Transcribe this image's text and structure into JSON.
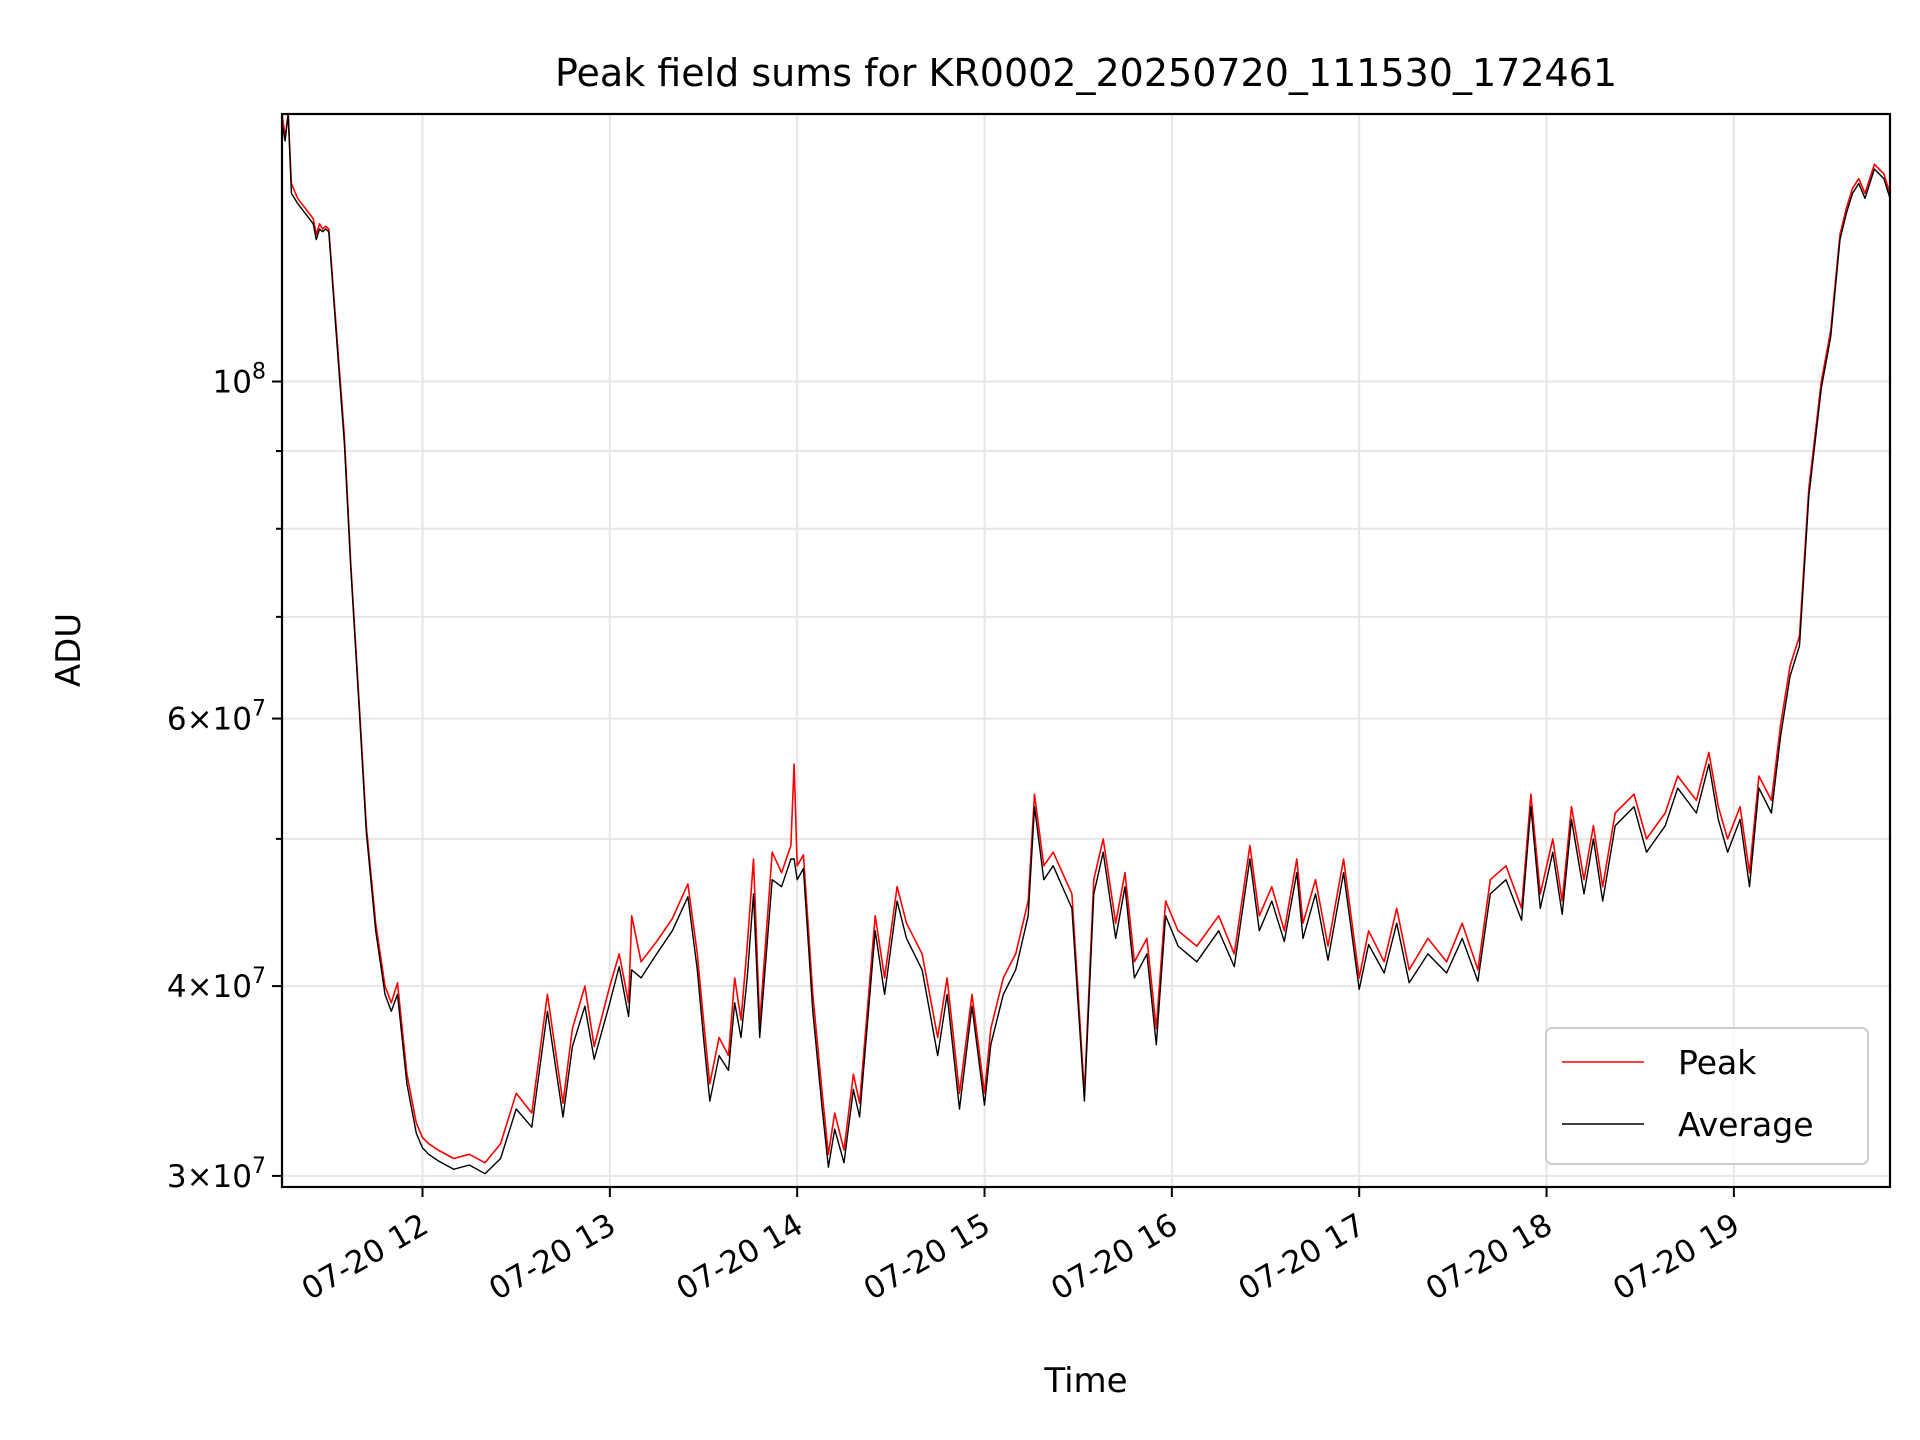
{
  "chart_data": {
    "type": "line",
    "title": "Peak field sums for KR0002_20250720_111530_172461",
    "xlabel": "Time",
    "ylabel": "ADU",
    "yscale": "log",
    "ylim": [
      29500000,
      150000000
    ],
    "xlim": [
      "2025-07-20 11:15",
      "2025-07-20 19:50"
    ],
    "grid": true,
    "legend_position": "lower right",
    "x_ticks": [
      {
        "x": "2025-07-20 12:00",
        "label": "07-20 12"
      },
      {
        "x": "2025-07-20 13:00",
        "label": "07-20 13"
      },
      {
        "x": "2025-07-20 14:00",
        "label": "07-20 14"
      },
      {
        "x": "2025-07-20 15:00",
        "label": "07-20 15"
      },
      {
        "x": "2025-07-20 16:00",
        "label": "07-20 16"
      },
      {
        "x": "2025-07-20 17:00",
        "label": "07-20 17"
      },
      {
        "x": "2025-07-20 18:00",
        "label": "07-20 18"
      },
      {
        "x": "2025-07-20 19:00",
        "label": "07-20 19"
      }
    ],
    "y_major_ticks": [
      {
        "value": 30000000,
        "mantissa": "3",
        "exp": "7"
      },
      {
        "value": 40000000,
        "mantissa": "4",
        "exp": "7"
      },
      {
        "value": 60000000,
        "mantissa": "6",
        "exp": "7"
      },
      {
        "value": 100000000,
        "mantissa": "",
        "exp": "8"
      }
    ],
    "y_minor_ticks": [
      50000000,
      70000000,
      80000000,
      90000000
    ],
    "series": [
      {
        "name": "Peak",
        "color": "#ff0000",
        "x": [
          "2025-07-20 11:15",
          "2025-07-20 11:16",
          "2025-07-20 11:17",
          "2025-07-20 11:18",
          "2025-07-20 11:20",
          "2025-07-20 11:25",
          "2025-07-20 11:26",
          "2025-07-20 11:27",
          "2025-07-20 11:28",
          "2025-07-20 11:29",
          "2025-07-20 11:30",
          "2025-07-20 11:32",
          "2025-07-20 11:35",
          "2025-07-20 11:37",
          "2025-07-20 11:40",
          "2025-07-20 11:42",
          "2025-07-20 11:45",
          "2025-07-20 11:48",
          "2025-07-20 11:50",
          "2025-07-20 11:52",
          "2025-07-20 11:55",
          "2025-07-20 11:58",
          "2025-07-20 12:00",
          "2025-07-20 12:02",
          "2025-07-20 12:05",
          "2025-07-20 12:10",
          "2025-07-20 12:15",
          "2025-07-20 12:20",
          "2025-07-20 12:25",
          "2025-07-20 12:30",
          "2025-07-20 12:35",
          "2025-07-20 12:40",
          "2025-07-20 12:45",
          "2025-07-20 12:48",
          "2025-07-20 12:52",
          "2025-07-20 12:55",
          "2025-07-20 13:00",
          "2025-07-20 13:03",
          "2025-07-20 13:06",
          "2025-07-20 13:07",
          "2025-07-20 13:10",
          "2025-07-20 13:15",
          "2025-07-20 13:20",
          "2025-07-20 13:25",
          "2025-07-20 13:28",
          "2025-07-20 13:30",
          "2025-07-20 13:32",
          "2025-07-20 13:35",
          "2025-07-20 13:38",
          "2025-07-20 13:40",
          "2025-07-20 13:42",
          "2025-07-20 13:44",
          "2025-07-20 13:46",
          "2025-07-20 13:48",
          "2025-07-20 13:52",
          "2025-07-20 13:55",
          "2025-07-20 13:58",
          "2025-07-20 13:59",
          "2025-07-20 14:00",
          "2025-07-20 14:02",
          "2025-07-20 14:05",
          "2025-07-20 14:08",
          "2025-07-20 14:10",
          "2025-07-20 14:12",
          "2025-07-20 14:15",
          "2025-07-20 14:18",
          "2025-07-20 14:20",
          "2025-07-20 14:25",
          "2025-07-20 14:28",
          "2025-07-20 14:32",
          "2025-07-20 14:35",
          "2025-07-20 14:40",
          "2025-07-20 14:45",
          "2025-07-20 14:48",
          "2025-07-20 14:52",
          "2025-07-20 14:56",
          "2025-07-20 15:00",
          "2025-07-20 15:02",
          "2025-07-20 15:06",
          "2025-07-20 15:10",
          "2025-07-20 15:14",
          "2025-07-20 15:16",
          "2025-07-20 15:19",
          "2025-07-20 15:22",
          "2025-07-20 15:28",
          "2025-07-20 15:32",
          "2025-07-20 15:35",
          "2025-07-20 15:38",
          "2025-07-20 15:42",
          "2025-07-20 15:45",
          "2025-07-20 15:48",
          "2025-07-20 15:52",
          "2025-07-20 15:55",
          "2025-07-20 15:58",
          "2025-07-20 16:02",
          "2025-07-20 16:08",
          "2025-07-20 16:15",
          "2025-07-20 16:20",
          "2025-07-20 16:25",
          "2025-07-20 16:28",
          "2025-07-20 16:32",
          "2025-07-20 16:36",
          "2025-07-20 16:40",
          "2025-07-20 16:42",
          "2025-07-20 16:46",
          "2025-07-20 16:50",
          "2025-07-20 16:55",
          "2025-07-20 17:00",
          "2025-07-20 17:03",
          "2025-07-20 17:08",
          "2025-07-20 17:12",
          "2025-07-20 17:16",
          "2025-07-20 17:22",
          "2025-07-20 17:28",
          "2025-07-20 17:33",
          "2025-07-20 17:38",
          "2025-07-20 17:42",
          "2025-07-20 17:47",
          "2025-07-20 17:52",
          "2025-07-20 17:55",
          "2025-07-20 17:58",
          "2025-07-20 18:02",
          "2025-07-20 18:05",
          "2025-07-20 18:08",
          "2025-07-20 18:12",
          "2025-07-20 18:15",
          "2025-07-20 18:18",
          "2025-07-20 18:22",
          "2025-07-20 18:28",
          "2025-07-20 18:32",
          "2025-07-20 18:38",
          "2025-07-20 18:42",
          "2025-07-20 18:48",
          "2025-07-20 18:52",
          "2025-07-20 18:55",
          "2025-07-20 18:58",
          "2025-07-20 19:02",
          "2025-07-20 19:05",
          "2025-07-20 19:08",
          "2025-07-20 19:12",
          "2025-07-20 19:15",
          "2025-07-20 19:18",
          "2025-07-20 19:21",
          "2025-07-20 19:24",
          "2025-07-20 19:28",
          "2025-07-20 19:31",
          "2025-07-20 19:34",
          "2025-07-20 19:36",
          "2025-07-20 19:38",
          "2025-07-20 19:40",
          "2025-07-20 19:42",
          "2025-07-20 19:45",
          "2025-07-20 19:48",
          "2025-07-20 19:50"
        ],
        "y": [
          150000000,
          145000000,
          152000000,
          135000000,
          132000000,
          128000000,
          125000000,
          127000000,
          126000000,
          126500000,
          126000000,
          111000000,
          92000000,
          76000000,
          60000000,
          51000000,
          44000000,
          40000000,
          39000000,
          40200000,
          35000000,
          32500000,
          31800000,
          31500000,
          31200000,
          30800000,
          31000000,
          30600000,
          31500000,
          34000000,
          33000000,
          39500000,
          33500000,
          37500000,
          40000000,
          36500000,
          40000000,
          42000000,
          39000000,
          44500000,
          41500000,
          42800000,
          44300000,
          46700000,
          42000000,
          38000000,
          34500000,
          37000000,
          36000000,
          40500000,
          38000000,
          42500000,
          48500000,
          37800000,
          49000000,
          47500000,
          49500000,
          56000000,
          48000000,
          48800000,
          39500000,
          34000000,
          31000000,
          33000000,
          31200000,
          35000000,
          33500000,
          44500000,
          40500000,
          46500000,
          44000000,
          42000000,
          37000000,
          40500000,
          34000000,
          39500000,
          34000000,
          37500000,
          40500000,
          42000000,
          45500000,
          53500000,
          48000000,
          49000000,
          46000000,
          34000000,
          47000000,
          50000000,
          44000000,
          47500000,
          41500000,
          43000000,
          37500000,
          45500000,
          43500000,
          42500000,
          44500000,
          42000000,
          49500000,
          44500000,
          46500000,
          43500000,
          48500000,
          44000000,
          47000000,
          42500000,
          48500000,
          40500000,
          43500000,
          41500000,
          45000000,
          41000000,
          43000000,
          41500000,
          44000000,
          41000000,
          47000000,
          48000000,
          45000000,
          53500000,
          46000000,
          50000000,
          45500000,
          52500000,
          47000000,
          51000000,
          46500000,
          52000000,
          53500000,
          50000000,
          52000000,
          55000000,
          53000000,
          57000000,
          52500000,
          50000000,
          52500000,
          47500000,
          55000000,
          53000000,
          59500000,
          65000000,
          68000000,
          85000000,
          100000000,
          108000000,
          125000000,
          130000000,
          134000000,
          136000000,
          133000000,
          139000000,
          137000000,
          133000000
        ]
      },
      {
        "name": "Average",
        "color": "#000000",
        "x": [
          "2025-07-20 11:15",
          "2025-07-20 11:16",
          "2025-07-20 11:17",
          "2025-07-20 11:18",
          "2025-07-20 11:20",
          "2025-07-20 11:25",
          "2025-07-20 11:26",
          "2025-07-20 11:27",
          "2025-07-20 11:28",
          "2025-07-20 11:29",
          "2025-07-20 11:30",
          "2025-07-20 11:32",
          "2025-07-20 11:35",
          "2025-07-20 11:37",
          "2025-07-20 11:40",
          "2025-07-20 11:42",
          "2025-07-20 11:45",
          "2025-07-20 11:48",
          "2025-07-20 11:50",
          "2025-07-20 11:52",
          "2025-07-20 11:55",
          "2025-07-20 11:58",
          "2025-07-20 12:00",
          "2025-07-20 12:02",
          "2025-07-20 12:05",
          "2025-07-20 12:10",
          "2025-07-20 12:15",
          "2025-07-20 12:20",
          "2025-07-20 12:25",
          "2025-07-20 12:30",
          "2025-07-20 12:35",
          "2025-07-20 12:40",
          "2025-07-20 12:45",
          "2025-07-20 12:48",
          "2025-07-20 12:52",
          "2025-07-20 12:55",
          "2025-07-20 13:00",
          "2025-07-20 13:03",
          "2025-07-20 13:06",
          "2025-07-20 13:07",
          "2025-07-20 13:10",
          "2025-07-20 13:15",
          "2025-07-20 13:20",
          "2025-07-20 13:25",
          "2025-07-20 13:28",
          "2025-07-20 13:30",
          "2025-07-20 13:32",
          "2025-07-20 13:35",
          "2025-07-20 13:38",
          "2025-07-20 13:40",
          "2025-07-20 13:42",
          "2025-07-20 13:44",
          "2025-07-20 13:46",
          "2025-07-20 13:48",
          "2025-07-20 13:52",
          "2025-07-20 13:55",
          "2025-07-20 13:58",
          "2025-07-20 13:59",
          "2025-07-20 14:00",
          "2025-07-20 14:02",
          "2025-07-20 14:05",
          "2025-07-20 14:08",
          "2025-07-20 14:10",
          "2025-07-20 14:12",
          "2025-07-20 14:15",
          "2025-07-20 14:18",
          "2025-07-20 14:20",
          "2025-07-20 14:25",
          "2025-07-20 14:28",
          "2025-07-20 14:32",
          "2025-07-20 14:35",
          "2025-07-20 14:40",
          "2025-07-20 14:45",
          "2025-07-20 14:48",
          "2025-07-20 14:52",
          "2025-07-20 14:56",
          "2025-07-20 15:00",
          "2025-07-20 15:02",
          "2025-07-20 15:06",
          "2025-07-20 15:10",
          "2025-07-20 15:14",
          "2025-07-20 15:16",
          "2025-07-20 15:19",
          "2025-07-20 15:22",
          "2025-07-20 15:28",
          "2025-07-20 15:32",
          "2025-07-20 15:35",
          "2025-07-20 15:38",
          "2025-07-20 15:42",
          "2025-07-20 15:45",
          "2025-07-20 15:48",
          "2025-07-20 15:52",
          "2025-07-20 15:55",
          "2025-07-20 15:58",
          "2025-07-20 16:02",
          "2025-07-20 16:08",
          "2025-07-20 16:15",
          "2025-07-20 16:20",
          "2025-07-20 16:25",
          "2025-07-20 16:28",
          "2025-07-20 16:32",
          "2025-07-20 16:36",
          "2025-07-20 16:40",
          "2025-07-20 16:42",
          "2025-07-20 16:46",
          "2025-07-20 16:50",
          "2025-07-20 16:55",
          "2025-07-20 17:00",
          "2025-07-20 17:03",
          "2025-07-20 17:08",
          "2025-07-20 17:12",
          "2025-07-20 17:16",
          "2025-07-20 17:22",
          "2025-07-20 17:28",
          "2025-07-20 17:33",
          "2025-07-20 17:38",
          "2025-07-20 17:42",
          "2025-07-20 17:47",
          "2025-07-20 17:52",
          "2025-07-20 17:55",
          "2025-07-20 17:58",
          "2025-07-20 18:02",
          "2025-07-20 18:05",
          "2025-07-20 18:08",
          "2025-07-20 18:12",
          "2025-07-20 18:15",
          "2025-07-20 18:18",
          "2025-07-20 18:22",
          "2025-07-20 18:28",
          "2025-07-20 18:32",
          "2025-07-20 18:38",
          "2025-07-20 18:42",
          "2025-07-20 18:48",
          "2025-07-20 18:52",
          "2025-07-20 18:55",
          "2025-07-20 18:58",
          "2025-07-20 19:02",
          "2025-07-20 19:05",
          "2025-07-20 19:08",
          "2025-07-20 19:12",
          "2025-07-20 19:15",
          "2025-07-20 19:18",
          "2025-07-20 19:21",
          "2025-07-20 19:24",
          "2025-07-20 19:28",
          "2025-07-20 19:31",
          "2025-07-20 19:34",
          "2025-07-20 19:36",
          "2025-07-20 19:38",
          "2025-07-20 19:40",
          "2025-07-20 19:42",
          "2025-07-20 19:45",
          "2025-07-20 19:48",
          "2025-07-20 19:50"
        ],
        "y": [
          148000000,
          144000000,
          150000000,
          133000000,
          131000000,
          127000000,
          124000000,
          126000000,
          125500000,
          126000000,
          125500000,
          110000000,
          91000000,
          75500000,
          59500000,
          50500000,
          43500000,
          39500000,
          38500000,
          39500000,
          34500000,
          32000000,
          31300000,
          31000000,
          30700000,
          30300000,
          30500000,
          30100000,
          30800000,
          33200000,
          32300000,
          38500000,
          32800000,
          36500000,
          38800000,
          35800000,
          39000000,
          41200000,
          38200000,
          41000000,
          40500000,
          42000000,
          43500000,
          45800000,
          41000000,
          37000000,
          33600000,
          36000000,
          35200000,
          39000000,
          37000000,
          40500000,
          46000000,
          37000000,
          47000000,
          46500000,
          48500000,
          48500000,
          47000000,
          47800000,
          38500000,
          33200000,
          30400000,
          32200000,
          30600000,
          34200000,
          32800000,
          43500000,
          39500000,
          45500000,
          43000000,
          41000000,
          36000000,
          39500000,
          33200000,
          38800000,
          33400000,
          36600000,
          39500000,
          41000000,
          44500000,
          52500000,
          47000000,
          48000000,
          45000000,
          33600000,
          46000000,
          49000000,
          43000000,
          46500000,
          40500000,
          42000000,
          36600000,
          44500000,
          42500000,
          41500000,
          43500000,
          41200000,
          48500000,
          43500000,
          45500000,
          42800000,
          47500000,
          43000000,
          46000000,
          41600000,
          47500000,
          39800000,
          42600000,
          40800000,
          44000000,
          40200000,
          42000000,
          40800000,
          43000000,
          40300000,
          46000000,
          47000000,
          44200000,
          52500000,
          45000000,
          49000000,
          44600000,
          51500000,
          46000000,
          50000000,
          45500000,
          51000000,
          52500000,
          49000000,
          51000000,
          54000000,
          52000000,
          56000000,
          51500000,
          49000000,
          51500000,
          46500000,
          54000000,
          52000000,
          58500000,
          64000000,
          67000000,
          84000000,
          99000000,
          107000000,
          124000000,
          129000000,
          133000000,
          135000000,
          132000000,
          138000000,
          136000000,
          132000000
        ]
      }
    ]
  }
}
